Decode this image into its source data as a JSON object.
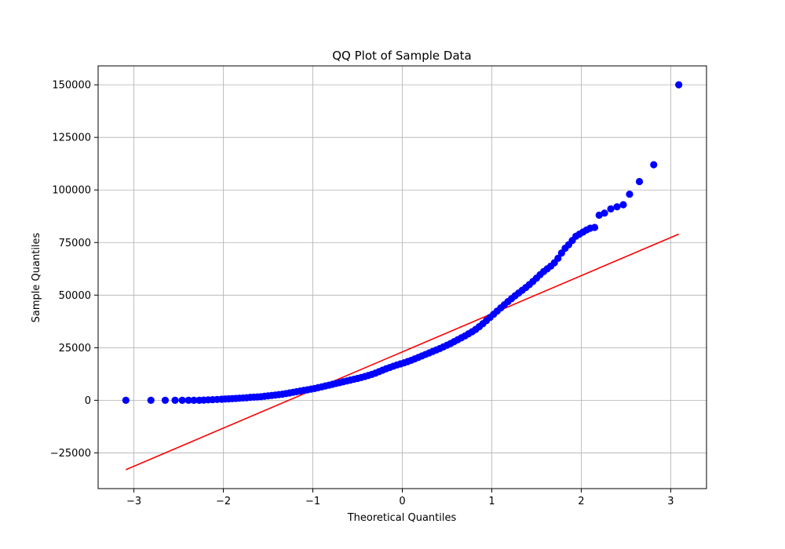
{
  "chart_data": {
    "type": "scatter",
    "title": "QQ Plot of Sample Data",
    "xlabel": "Theoretical Quantiles",
    "ylabel": "Sample Quantiles",
    "xlim": [
      -3.4,
      3.4
    ],
    "ylim": [
      -42000,
      159000
    ],
    "grid": true,
    "xticks": [
      -3,
      -2,
      -1,
      0,
      1,
      2,
      3
    ],
    "xtick_labels": [
      "−3",
      "−2",
      "−1",
      "0",
      "1",
      "2",
      "3"
    ],
    "yticks": [
      -25000,
      0,
      25000,
      50000,
      75000,
      100000,
      125000,
      150000
    ],
    "ytick_labels": [
      "−25000",
      "0",
      "25000",
      "50000",
      "75000",
      "100000",
      "125000",
      "150000"
    ],
    "series": [
      {
        "kind": "points",
        "color": "#0000ff",
        "points": [
          [
            -3.09,
            0
          ],
          [
            -2.81,
            0
          ],
          [
            -2.65,
            0
          ],
          [
            -2.54,
            0
          ],
          [
            -2.46,
            0
          ],
          [
            -2.39,
            0
          ],
          [
            -2.33,
            0
          ],
          [
            -2.27,
            0
          ],
          [
            -2.22,
            100
          ],
          [
            -2.17,
            200
          ],
          [
            -2.12,
            300
          ],
          [
            -2.07,
            400
          ],
          [
            -2.02,
            500
          ],
          [
            -1.98,
            600
          ],
          [
            -1.94,
            700
          ],
          [
            -1.9,
            800
          ],
          [
            -1.86,
            900
          ],
          [
            -1.82,
            1000
          ],
          [
            -1.78,
            1100
          ],
          [
            -1.74,
            1200
          ],
          [
            -1.7,
            1400
          ],
          [
            -1.66,
            1500
          ],
          [
            -1.62,
            1600
          ],
          [
            -1.58,
            1700
          ],
          [
            -1.54,
            1900
          ],
          [
            -1.5,
            2100
          ],
          [
            -1.46,
            2300
          ],
          [
            -1.42,
            2500
          ],
          [
            -1.38,
            2700
          ],
          [
            -1.34,
            2900
          ],
          [
            -1.3,
            3200
          ],
          [
            -1.26,
            3500
          ],
          [
            -1.22,
            3800
          ],
          [
            -1.18,
            4100
          ],
          [
            -1.14,
            4400
          ],
          [
            -1.1,
            4700
          ],
          [
            -1.06,
            5000
          ],
          [
            -1.02,
            5300
          ],
          [
            -0.98,
            5600
          ],
          [
            -0.94,
            6000
          ],
          [
            -0.9,
            6400
          ],
          [
            -0.86,
            6800
          ],
          [
            -0.82,
            7200
          ],
          [
            -0.78,
            7600
          ],
          [
            -0.74,
            8000
          ],
          [
            -0.7,
            8400
          ],
          [
            -0.66,
            8800
          ],
          [
            -0.62,
            9200
          ],
          [
            -0.58,
            9600
          ],
          [
            -0.54,
            10000
          ],
          [
            -0.5,
            10400
          ],
          [
            -0.46,
            10800
          ],
          [
            -0.42,
            11300
          ],
          [
            -0.38,
            11800
          ],
          [
            -0.34,
            12300
          ],
          [
            -0.3,
            12900
          ],
          [
            -0.26,
            13600
          ],
          [
            -0.22,
            14300
          ],
          [
            -0.18,
            15000
          ],
          [
            -0.14,
            15600
          ],
          [
            -0.1,
            16200
          ],
          [
            -0.06,
            16800
          ],
          [
            -0.02,
            17300
          ],
          [
            0.02,
            17800
          ],
          [
            0.06,
            18400
          ],
          [
            0.1,
            19000
          ],
          [
            0.14,
            19700
          ],
          [
            0.18,
            20400
          ],
          [
            0.22,
            21100
          ],
          [
            0.26,
            21800
          ],
          [
            0.3,
            22500
          ],
          [
            0.34,
            23200
          ],
          [
            0.38,
            23900
          ],
          [
            0.42,
            24600
          ],
          [
            0.46,
            25400
          ],
          [
            0.5,
            26200
          ],
          [
            0.54,
            27000
          ],
          [
            0.58,
            27900
          ],
          [
            0.62,
            28800
          ],
          [
            0.66,
            29700
          ],
          [
            0.7,
            30600
          ],
          [
            0.74,
            31600
          ],
          [
            0.78,
            32600
          ],
          [
            0.82,
            33700
          ],
          [
            0.86,
            35000
          ],
          [
            0.9,
            36400
          ],
          [
            0.94,
            37900
          ],
          [
            0.98,
            39400
          ],
          [
            1.02,
            40900
          ],
          [
            1.06,
            42400
          ],
          [
            1.1,
            43900
          ],
          [
            1.14,
            45400
          ],
          [
            1.18,
            46900
          ],
          [
            1.22,
            48300
          ],
          [
            1.26,
            49700
          ],
          [
            1.3,
            51000
          ],
          [
            1.34,
            52300
          ],
          [
            1.38,
            53600
          ],
          [
            1.42,
            55000
          ],
          [
            1.46,
            56500
          ],
          [
            1.5,
            58100
          ],
          [
            1.54,
            59700
          ],
          [
            1.58,
            61200
          ],
          [
            1.62,
            62500
          ],
          [
            1.66,
            63800
          ],
          [
            1.7,
            65400
          ],
          [
            1.74,
            67500
          ],
          [
            1.78,
            70000
          ],
          [
            1.82,
            72300
          ],
          [
            1.86,
            74000
          ],
          [
            1.9,
            76000
          ],
          [
            1.94,
            78000
          ],
          [
            1.98,
            79000
          ],
          [
            2.02,
            80000
          ],
          [
            2.06,
            81000
          ],
          [
            2.1,
            81800
          ],
          [
            2.15,
            82200
          ],
          [
            2.2,
            88000
          ],
          [
            2.26,
            89000
          ],
          [
            2.33,
            91000
          ],
          [
            2.4,
            92000
          ],
          [
            2.47,
            93000
          ],
          [
            2.54,
            98000
          ],
          [
            2.65,
            104000
          ],
          [
            2.81,
            112000
          ],
          [
            3.09,
            150000
          ]
        ]
      },
      {
        "kind": "reference-line",
        "color": "#ff0000",
        "points": [
          [
            -3.09,
            -33000
          ],
          [
            3.09,
            79000
          ]
        ]
      }
    ]
  }
}
